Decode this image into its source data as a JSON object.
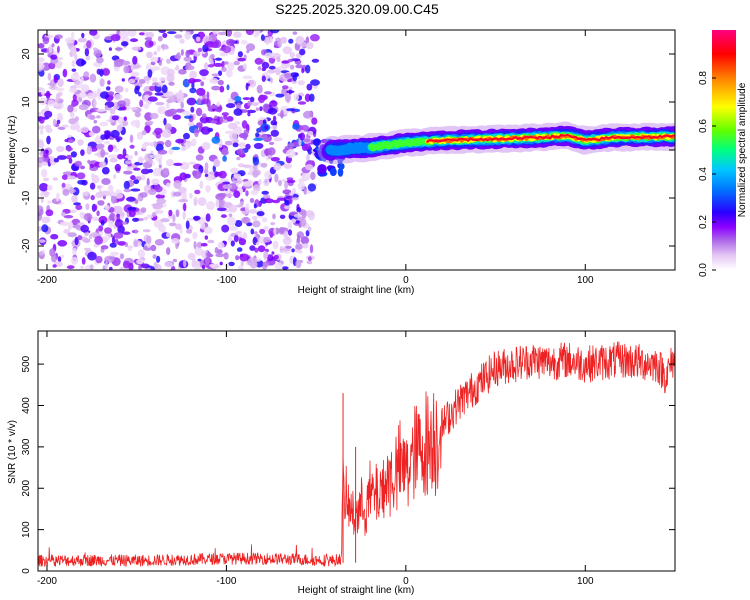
{
  "title": "S225.2025.320.09.00.C45",
  "chart_data": [
    {
      "type": "heatmap",
      "xlabel": "Height of straight line (km)",
      "ylabel": "Frequency (Hz)",
      "xlim": [
        -205,
        150
      ],
      "ylim": [
        -25,
        25
      ],
      "xticks": [
        -200,
        -100,
        0,
        100
      ],
      "xtick_labels": [
        "-200",
        "-100",
        "0",
        "100"
      ],
      "yticks": [
        20,
        10,
        0,
        -10,
        -20
      ],
      "ytick_labels": [
        "20",
        "10",
        "0",
        "-10",
        "-20"
      ],
      "colorbar": {
        "label": "Normalized spectral amplitude",
        "range": [
          0,
          1
        ],
        "ticks": [
          0.0,
          0.2,
          0.4,
          0.6,
          0.8
        ],
        "tick_labels": [
          "0.0",
          "0.2",
          "0.4",
          "0.6",
          "0.8"
        ],
        "colors": [
          "#ffffff",
          "#e6c8f5",
          "#b06ee8",
          "#8b00ff",
          "#2b00ff",
          "#0070ff",
          "#00c8ff",
          "#00ff80",
          "#60ff00",
          "#ffff00",
          "#ff8000",
          "#ff0000",
          "#ff0080"
        ]
      },
      "regions": [
        {
          "name": "scattered noise",
          "x": [
            -205,
            -50
          ],
          "y": [
            -25,
            25
          ],
          "amplitude": [
            0.0,
            0.3
          ]
        },
        {
          "name": "transition",
          "x": [
            -50,
            -35
          ],
          "y": [
            -5,
            2
          ],
          "amplitude": [
            0.2,
            0.35
          ]
        },
        {
          "name": "signal band",
          "x": [
            -35,
            150
          ],
          "frequency_hz": [
            0,
            3
          ],
          "amplitude": [
            0.3,
            1.0
          ]
        }
      ],
      "signal_band_centerline": {
        "x": [
          -40,
          -20,
          0,
          20,
          50,
          75,
          90,
          100,
          115,
          150
        ],
        "y": [
          0,
          0.5,
          1.5,
          2,
          2.3,
          2.6,
          3,
          2,
          2.6,
          2.8
        ]
      }
    },
    {
      "type": "line",
      "xlabel": "Height of straight line (km)",
      "ylabel": "SNR (10 * v/v)",
      "xlim": [
        -205,
        150
      ],
      "ylim": [
        0,
        580
      ],
      "xticks": [
        -200,
        -100,
        0,
        100
      ],
      "xtick_labels": [
        "-200",
        "-100",
        "0",
        "100"
      ],
      "yticks": [
        0,
        100,
        200,
        300,
        400,
        500
      ],
      "ytick_labels": [
        "0",
        "100",
        "200",
        "300",
        "400",
        "500"
      ],
      "series": [
        {
          "name": "SNR",
          "color": "#ee2222",
          "x": [
            -205,
            -180,
            -150,
            -120,
            -100,
            -80,
            -60,
            -40,
            -36,
            -35,
            -33,
            -30,
            -25,
            -20,
            -15,
            -10,
            -5,
            0,
            5,
            10,
            15,
            20,
            25,
            30,
            40,
            50,
            60,
            70,
            80,
            90,
            100,
            110,
            120,
            130,
            140,
            145,
            150
          ],
          "y": [
            25,
            26,
            25,
            28,
            30,
            30,
            28,
            25,
            30,
            200,
            160,
            140,
            150,
            180,
            190,
            220,
            240,
            250,
            280,
            300,
            320,
            350,
            380,
            410,
            450,
            490,
            500,
            510,
            505,
            510,
            500,
            505,
            510,
            505,
            500,
            470,
            520
          ]
        }
      ],
      "spikes": [
        {
          "x": -35,
          "y": 430
        },
        {
          "x": -28,
          "y": 300
        },
        {
          "x": 150,
          "y": 390
        }
      ]
    }
  ]
}
